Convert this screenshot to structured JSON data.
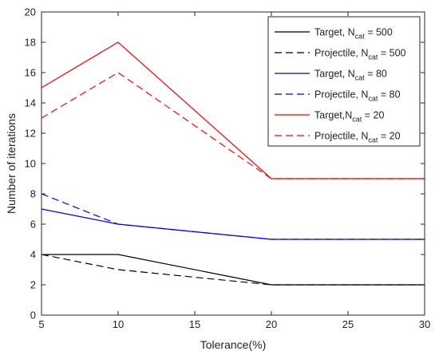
{
  "chart_data": {
    "type": "line",
    "title": "",
    "xlabel": "Tolerance(%)",
    "ylabel": "Number of iterations",
    "xlim": [
      5,
      30
    ],
    "ylim": [
      0,
      20
    ],
    "xticks": [
      5,
      10,
      15,
      20,
      25,
      30
    ],
    "yticks": [
      0,
      2,
      4,
      6,
      8,
      10,
      12,
      14,
      16,
      18,
      20
    ],
    "x": [
      5,
      10,
      20,
      30
    ],
    "grid": false,
    "legend_position": "top-right",
    "series": [
      {
        "name": "Target, N_cat = 500",
        "legend_main": "Target, N",
        "legend_sub": "cat",
        "legend_tail": " = 500",
        "color": "#000000",
        "dash": "solid",
        "values": [
          4,
          4,
          2,
          2
        ]
      },
      {
        "name": "Projectile, N_cat = 500",
        "legend_main": "Projectile, N",
        "legend_sub": "cat",
        "legend_tail": " = 500",
        "color": "#000000",
        "dash": "dashed",
        "values": [
          4,
          3,
          2,
          2
        ]
      },
      {
        "name": "Target, N_cat = 80",
        "legend_main": "Target, N",
        "legend_sub": "cat",
        "legend_tail": " = 80",
        "color": "#0000ff",
        "dash": "solid",
        "values": [
          7,
          6,
          5,
          5
        ]
      },
      {
        "name": "Projectile, N_cat = 80",
        "legend_main": "Projectile, N",
        "legend_sub": "cat",
        "legend_tail": " = 80",
        "color": "#0000ff",
        "dash": "dashed",
        "values": [
          8,
          6,
          5,
          5
        ]
      },
      {
        "name": "Target,N_cat = 20",
        "legend_main": "Target,N",
        "legend_sub": "cat",
        "legend_tail": " = 20",
        "color": "#ff0000",
        "dash": "solid",
        "values": [
          15,
          18,
          9,
          9
        ]
      },
      {
        "name": "Projectile, N_cat = 20",
        "legend_main": "Projectile, N",
        "legend_sub": "cat",
        "legend_tail": " = 20",
        "color": "#ff0000",
        "dash": "dashed",
        "values": [
          13,
          16,
          9,
          9
        ]
      }
    ]
  }
}
